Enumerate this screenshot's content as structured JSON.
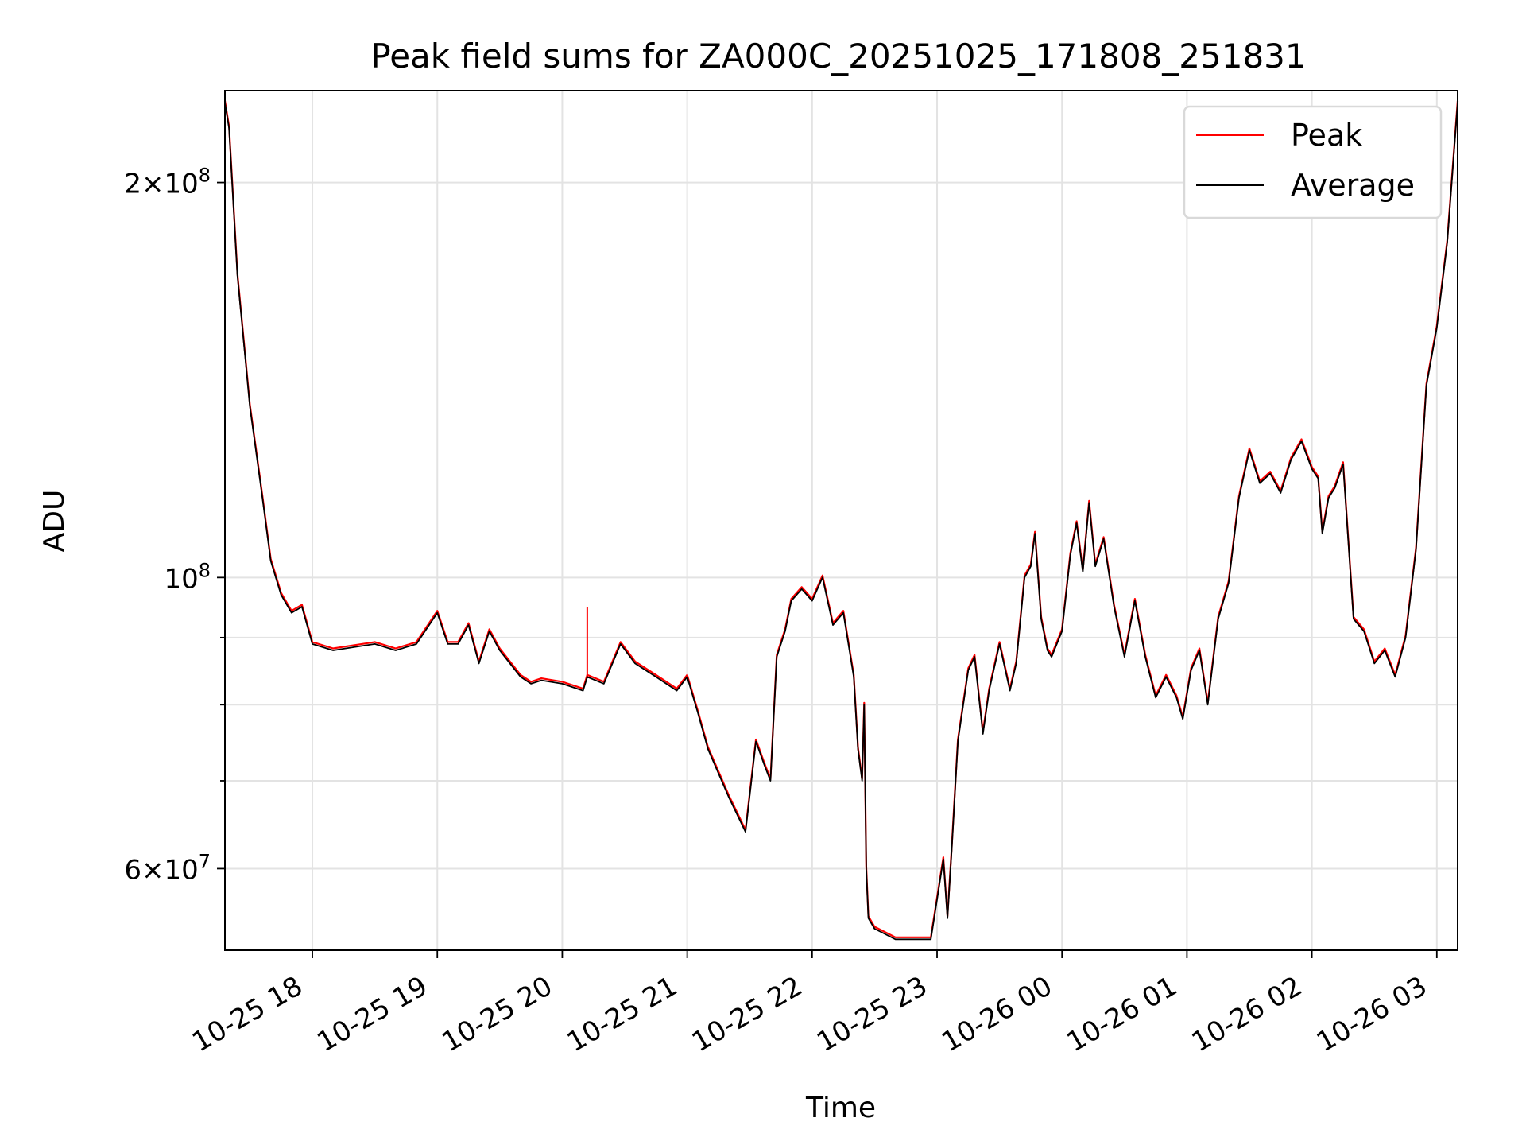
{
  "chart_data": {
    "type": "line",
    "title": "Peak field sums for ZA000C_20251025_171808_251831",
    "xlabel": "Time",
    "ylabel": "ADU",
    "y_scale": "log",
    "ylim": [
      52000000,
      235000000
    ],
    "xlim": [
      "10-25 17:18",
      "10-26 03:10"
    ],
    "grid": true,
    "legend_position": "upper right",
    "x_ticks": [
      {
        "t": "10-25 18:00",
        "label": "10-25 18"
      },
      {
        "t": "10-25 19:00",
        "label": "10-25 19"
      },
      {
        "t": "10-25 20:00",
        "label": "10-25 20"
      },
      {
        "t": "10-25 21:00",
        "label": "10-25 21"
      },
      {
        "t": "10-25 22:00",
        "label": "10-25 22"
      },
      {
        "t": "10-25 23:00",
        "label": "10-25 23"
      },
      {
        "t": "10-26 00:00",
        "label": "10-26 00"
      },
      {
        "t": "10-26 01:00",
        "label": "10-26 01"
      },
      {
        "t": "10-26 02:00",
        "label": "10-26 02"
      },
      {
        "t": "10-26 03:00",
        "label": "10-26 03"
      }
    ],
    "y_ticks": [
      {
        "value": 60000000,
        "mantissa": "6",
        "exponent": "7"
      },
      {
        "value": 100000000,
        "mantissa": "",
        "exponent": "8"
      },
      {
        "value": 200000000,
        "mantissa": "2",
        "exponent": "8"
      }
    ],
    "y_minor_grid": [
      70000000,
      80000000,
      90000000
    ],
    "series": [
      {
        "name": "Peak",
        "color": "#ff0000",
        "spikes": [
          {
            "x": "10-25 20:12",
            "y": 95000000
          }
        ]
      },
      {
        "name": "Average",
        "color": "#000000",
        "spikes": []
      }
    ],
    "x": [
      "10-25 17:18",
      "10-25 17:20",
      "10-25 17:24",
      "10-25 17:30",
      "10-25 17:36",
      "10-25 17:40",
      "10-25 17:45",
      "10-25 17:50",
      "10-25 17:55",
      "10-25 18:00",
      "10-25 18:10",
      "10-25 18:20",
      "10-25 18:30",
      "10-25 18:40",
      "10-25 18:50",
      "10-25 19:00",
      "10-25 19:05",
      "10-25 19:10",
      "10-25 19:15",
      "10-25 19:20",
      "10-25 19:25",
      "10-25 19:30",
      "10-25 19:40",
      "10-25 19:45",
      "10-25 19:50",
      "10-25 20:00",
      "10-25 20:10",
      "10-25 20:12",
      "10-25 20:20",
      "10-25 20:28",
      "10-25 20:35",
      "10-25 20:45",
      "10-25 20:55",
      "10-25 21:00",
      "10-25 21:05",
      "10-25 21:10",
      "10-25 21:20",
      "10-25 21:28",
      "10-25 21:33",
      "10-25 21:37",
      "10-25 21:40",
      "10-25 21:43",
      "10-25 21:47",
      "10-25 21:50",
      "10-25 21:55",
      "10-25 22:00",
      "10-25 22:05",
      "10-25 22:10",
      "10-25 22:15",
      "10-25 22:20",
      "10-25 22:22",
      "10-25 22:24",
      "10-25 22:25",
      "10-25 22:26",
      "10-25 22:27",
      "10-25 22:30",
      "10-25 22:40",
      "10-25 22:50",
      "10-25 22:57",
      "10-25 23:03",
      "10-25 23:05",
      "10-25 23:07",
      "10-25 23:10",
      "10-25 23:15",
      "10-25 23:18",
      "10-25 23:22",
      "10-25 23:25",
      "10-25 23:30",
      "10-25 23:35",
      "10-25 23:38",
      "10-25 23:42",
      "10-25 23:45",
      "10-25 23:47",
      "10-25 23:50",
      "10-25 23:53",
      "10-25 23:55",
      "10-26 00:00",
      "10-26 00:04",
      "10-26 00:07",
      "10-26 00:10",
      "10-26 00:13",
      "10-26 00:16",
      "10-26 00:20",
      "10-26 00:25",
      "10-26 00:30",
      "10-26 00:35",
      "10-26 00:40",
      "10-26 00:45",
      "10-26 00:50",
      "10-26 00:55",
      "10-26 00:58",
      "10-26 01:02",
      "10-26 01:06",
      "10-26 01:10",
      "10-26 01:15",
      "10-26 01:20",
      "10-26 01:25",
      "10-26 01:30",
      "10-26 01:35",
      "10-26 01:40",
      "10-26 01:45",
      "10-26 01:50",
      "10-26 01:55",
      "10-26 02:00",
      "10-26 02:03",
      "10-26 02:05",
      "10-26 02:08",
      "10-26 02:11",
      "10-26 02:15",
      "10-26 02:20",
      "10-26 02:25",
      "10-26 02:30",
      "10-26 02:35",
      "10-26 02:40",
      "10-26 02:45",
      "10-26 02:50",
      "10-26 02:55",
      "10-26 03:00",
      "10-26 03:05",
      "10-26 03:10"
    ],
    "y": [
      230000000,
      220000000,
      170000000,
      135000000,
      115000000,
      103000000,
      97000000,
      94000000,
      95000000,
      89000000,
      88000000,
      88500000,
      89000000,
      88000000,
      89000000,
      94000000,
      89000000,
      89000000,
      92000000,
      86000000,
      91000000,
      88000000,
      84000000,
      83000000,
      83500000,
      83000000,
      82000000,
      84000000,
      83000000,
      89000000,
      86000000,
      84000000,
      82000000,
      84000000,
      79000000,
      74000000,
      68000000,
      64000000,
      75000000,
      72000000,
      70000000,
      87000000,
      91000000,
      96000000,
      98000000,
      96000000,
      100000000,
      92000000,
      94000000,
      84000000,
      74000000,
      70000000,
      80000000,
      60000000,
      55000000,
      54000000,
      53000000,
      53000000,
      53000000,
      61000000,
      55000000,
      62000000,
      75000000,
      85000000,
      87000000,
      76000000,
      82000000,
      89000000,
      82000000,
      86000000,
      100000000,
      102000000,
      108000000,
      93000000,
      88000000,
      87000000,
      91000000,
      104000000,
      110000000,
      101000000,
      114000000,
      102000000,
      107000000,
      95000000,
      87000000,
      96000000,
      87000000,
      81000000,
      84000000,
      81000000,
      78000000,
      85000000,
      88000000,
      80000000,
      93000000,
      99000000,
      115000000,
      125000000,
      118000000,
      120000000,
      116000000,
      123000000,
      127000000,
      121000000,
      119000000,
      108000000,
      115000000,
      117000000,
      122000000,
      93000000,
      91000000,
      86000000,
      88000000,
      84000000,
      90000000,
      105000000,
      140000000,
      155000000,
      180000000,
      230000000
    ]
  },
  "legend": {
    "peak_label": "Peak",
    "average_label": "Average"
  }
}
